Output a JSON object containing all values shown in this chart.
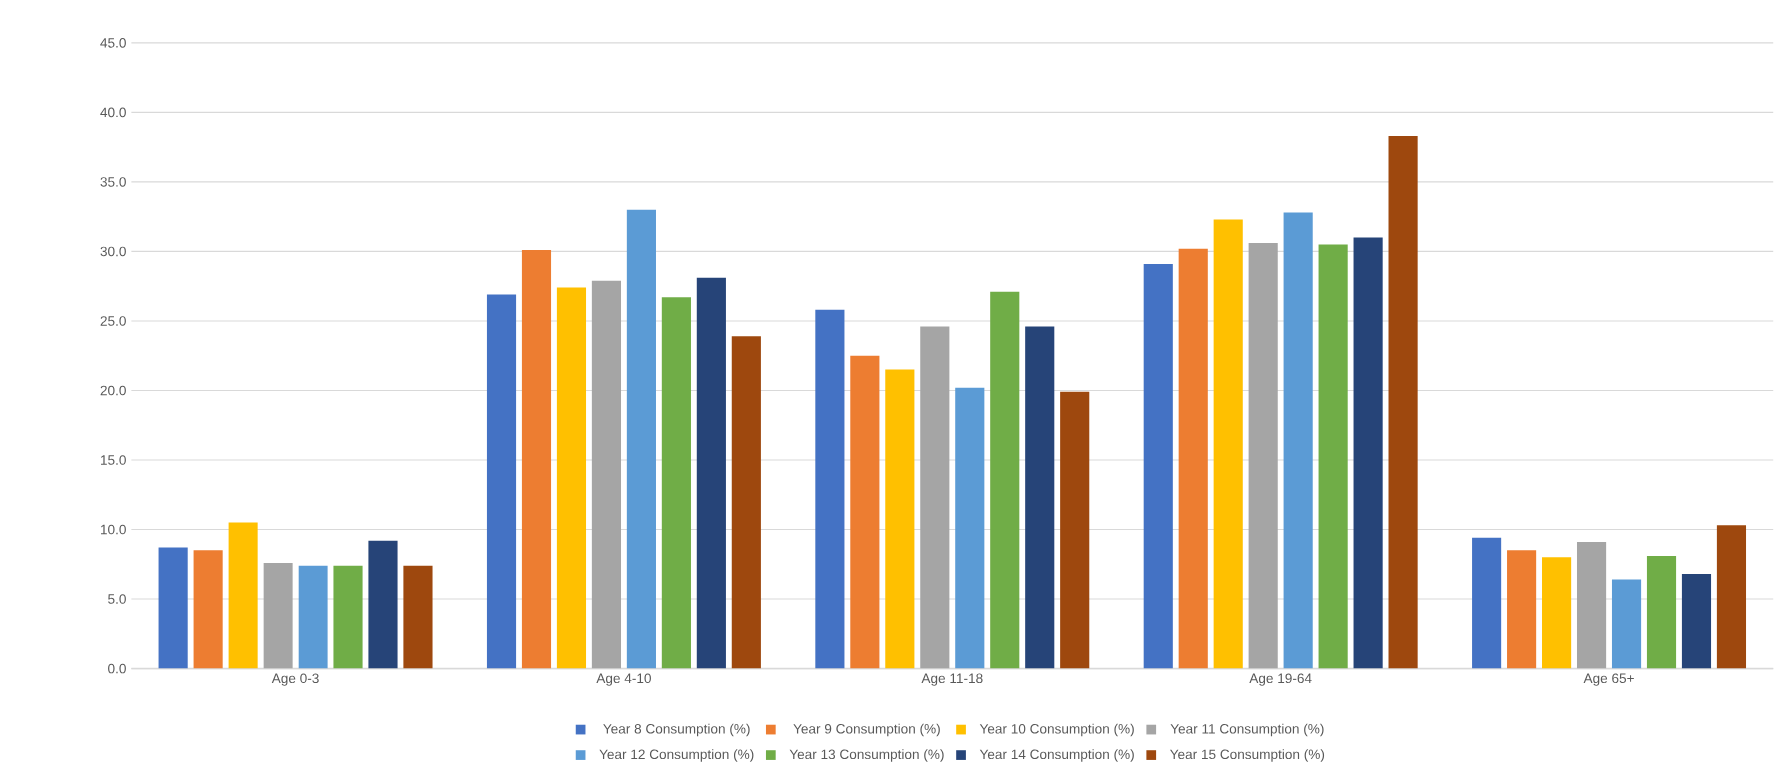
{
  "chart_data": {
    "type": "bar",
    "categories": [
      "Age 0-3",
      "Age 4-10",
      "Age 11-18",
      "Age 19-64",
      "Age 65+"
    ],
    "series": [
      {
        "name": "Year 8 Consumption (%)",
        "color": "#4472c4",
        "values": [
          8.7,
          26.9,
          25.8,
          29.1,
          9.4
        ]
      },
      {
        "name": "Year 9 Consumption (%)",
        "color": "#ed7d31",
        "values": [
          8.5,
          30.1,
          22.5,
          30.2,
          8.5
        ]
      },
      {
        "name": "Year 10 Consumption (%)",
        "color": "#ffc000",
        "values": [
          10.5,
          27.4,
          21.5,
          32.3,
          8.0
        ]
      },
      {
        "name": "Year 11 Consumption (%)",
        "color": "#a5a5a5",
        "values": [
          7.6,
          27.9,
          24.6,
          30.6,
          9.1
        ]
      },
      {
        "name": "Year 12 Consumption (%)",
        "color": "#5b9bd5",
        "values": [
          7.4,
          33.0,
          20.2,
          32.8,
          6.4
        ]
      },
      {
        "name": "Year 13 Consumption (%)",
        "color": "#70ad47",
        "values": [
          7.4,
          26.7,
          27.1,
          30.5,
          8.1
        ]
      },
      {
        "name": "Year 14 Consumption (%)",
        "color": "#264478",
        "values": [
          9.2,
          28.1,
          24.6,
          31.0,
          6.8
        ]
      },
      {
        "name": "Year 15 Consumption (%)",
        "color": "#9e480e",
        "values": [
          7.4,
          23.9,
          19.9,
          38.3,
          10.3
        ]
      }
    ],
    "ylim": [
      0,
      45
    ],
    "yticks": [
      {
        "value": 0,
        "label": "0.0"
      },
      {
        "value": 5,
        "label": "5.0"
      },
      {
        "value": 10,
        "label": "10.0"
      },
      {
        "value": 15,
        "label": "15.0"
      },
      {
        "value": 20,
        "label": "20.0"
      },
      {
        "value": 25,
        "label": "25.0"
      },
      {
        "value": 30,
        "label": "30.0"
      },
      {
        "value": 35,
        "label": "35.0"
      },
      {
        "value": 40,
        "label": "40.0"
      },
      {
        "value": 45,
        "label": "45.0"
      }
    ],
    "grid": "y",
    "legend": "bottom"
  }
}
